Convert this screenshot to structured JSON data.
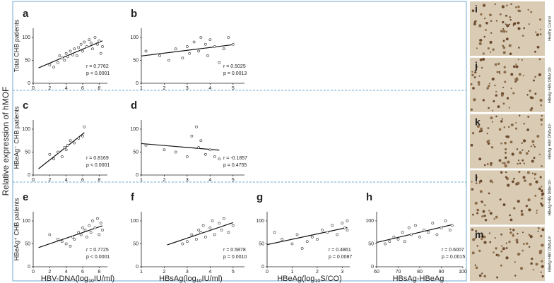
{
  "chart_data": [
    {
      "type": "scatter",
      "panel": "a",
      "xlim": [
        0,
        9
      ],
      "ylim": [
        0,
        120
      ],
      "xticks": [
        0,
        2,
        4,
        6,
        8
      ],
      "yticks": [
        0,
        50,
        100
      ],
      "x": [
        2,
        2.5,
        3,
        3.2,
        3.5,
        3.8,
        4,
        4.2,
        4.5,
        4.8,
        5,
        5.3,
        5.5,
        5.8,
        6,
        6.2,
        6.5,
        6.8,
        7,
        7.2,
        7.5,
        7.8,
        8,
        8.2,
        8.4
      ],
      "values": [
        40,
        35,
        45,
        60,
        55,
        50,
        65,
        58,
        70,
        62,
        75,
        60,
        78,
        85,
        70,
        90,
        80,
        95,
        88,
        75,
        100,
        85,
        92,
        65,
        80
      ],
      "annotations": [
        "r = 0.7762",
        "p < 0.0001"
      ]
    },
    {
      "type": "scatter",
      "panel": "b",
      "xlim": [
        1,
        5.5
      ],
      "ylim": [
        0,
        120
      ],
      "xticks": [
        1,
        2,
        3,
        4,
        5
      ],
      "yticks": [
        0,
        50,
        100
      ],
      "x": [
        1.2,
        1.8,
        2.2,
        2.5,
        2.8,
        3,
        3.1,
        3.3,
        3.5,
        3.6,
        3.8,
        3.9,
        4,
        4.2,
        4.4,
        4.6,
        4.8,
        5
      ],
      "values": [
        70,
        60,
        50,
        75,
        55,
        80,
        65,
        90,
        70,
        100,
        85,
        60,
        95,
        80,
        45,
        75,
        100,
        85
      ],
      "annotations": [
        "r = 0.5025",
        "p = 0.0013"
      ]
    },
    {
      "type": "scatter",
      "panel": "c",
      "xlim": [
        0,
        9
      ],
      "ylim": [
        0,
        120
      ],
      "xticks": [
        0,
        2,
        4,
        6,
        8
      ],
      "yticks": [
        0,
        50,
        100
      ],
      "x": [
        2,
        2.5,
        3,
        3.5,
        3.8,
        4,
        4.2,
        4.5,
        5,
        5.5,
        6,
        6.2
      ],
      "values": [
        45,
        35,
        50,
        40,
        60,
        55,
        65,
        75,
        70,
        80,
        85,
        105
      ],
      "annotations": [
        "r = 0.8169",
        "p < 0.0001"
      ]
    },
    {
      "type": "scatter",
      "panel": "d",
      "xlim": [
        1,
        5.5
      ],
      "ylim": [
        0,
        120
      ],
      "xticks": [
        1,
        2,
        3,
        4,
        5
      ],
      "yticks": [
        0,
        50,
        100
      ],
      "x": [
        1.2,
        2,
        2.5,
        3,
        3.2,
        3.4,
        3.5,
        3.6,
        3.8,
        4,
        4.2,
        4.4
      ],
      "values": [
        65,
        55,
        50,
        40,
        85,
        105,
        60,
        75,
        45,
        55,
        40,
        35
      ],
      "annotations": [
        "r = -0.1857",
        "p = 0.4755"
      ]
    },
    {
      "type": "scatter",
      "panel": "e",
      "xlim": [
        0,
        9
      ],
      "ylim": [
        0,
        120
      ],
      "xticks": [
        0,
        2,
        4,
        6,
        8
      ],
      "yticks": [
        0,
        50,
        100
      ],
      "x": [
        2,
        3,
        3.5,
        4,
        4.5,
        4.8,
        5,
        5.5,
        5.8,
        6,
        6.3,
        6.5,
        6.8,
        7,
        7.2,
        7.5,
        7.8,
        8,
        8.2,
        8.4
      ],
      "values": [
        70,
        60,
        55,
        50,
        45,
        65,
        60,
        75,
        70,
        85,
        80,
        65,
        90,
        75,
        100,
        85,
        105,
        70,
        95,
        80
      ],
      "annotations": [
        "r = 0.7725",
        "p < 0.0001"
      ]
    },
    {
      "type": "scatter",
      "panel": "f",
      "xlim": [
        1,
        5.5
      ],
      "ylim": [
        0,
        120
      ],
      "xticks": [
        1,
        2,
        3,
        4,
        5
      ],
      "yticks": [
        0,
        50,
        100
      ],
      "x": [
        2.8,
        3,
        3.2,
        3.4,
        3.5,
        3.6,
        3.7,
        3.8,
        4,
        4.1,
        4.2,
        4.4,
        4.5,
        4.6,
        4.8,
        5
      ],
      "values": [
        50,
        55,
        70,
        60,
        80,
        75,
        90,
        65,
        85,
        100,
        70,
        95,
        80,
        105,
        75,
        90
      ],
      "annotations": [
        "r = 0.5878",
        "p = 0.0010"
      ]
    },
    {
      "type": "scatter",
      "panel": "g",
      "xlim": [
        0,
        3.3
      ],
      "ylim": [
        0,
        120
      ],
      "xticks": [
        0,
        1,
        2,
        3
      ],
      "yticks": [
        0,
        50,
        100
      ],
      "x": [
        0.3,
        0.6,
        1,
        1.2,
        1.4,
        1.6,
        1.8,
        2,
        2.2,
        2.4,
        2.6,
        2.8,
        3,
        3.1,
        3.2,
        3.2
      ],
      "values": [
        75,
        60,
        50,
        70,
        40,
        55,
        65,
        60,
        80,
        75,
        90,
        70,
        95,
        85,
        100,
        80
      ],
      "annotations": [
        "r = 0.4861",
        "p = 0.0087"
      ]
    },
    {
      "type": "scatter",
      "panel": "h",
      "xlim": [
        60,
        100
      ],
      "ylim": [
        0,
        120
      ],
      "xticks": [
        60,
        70,
        80,
        90,
        100
      ],
      "yticks": [
        0,
        50,
        100
      ],
      "x": [
        64,
        66,
        68,
        70,
        72,
        73,
        75,
        76,
        78,
        80,
        82,
        84,
        86,
        88,
        90,
        92,
        94,
        95
      ],
      "values": [
        50,
        55,
        65,
        60,
        75,
        55,
        85,
        70,
        90,
        65,
        80,
        75,
        95,
        70,
        85,
        100,
        80,
        90
      ],
      "annotations": [
        "r = 0.6007",
        "p = 0.0015"
      ]
    }
  ],
  "figure": {
    "y_label": "Relative expression of hMOF",
    "row_labels": [
      "Total CHB patients",
      "HBeAg⁻ CHB patients",
      "HBeAg⁺ CHB patients"
    ],
    "x_labels": [
      [
        "HBV-DNA(log",
        "10",
        "IU/ml)"
      ],
      [
        "HBsAg(log",
        "10",
        "IU/ml)"
      ],
      [
        "HBeAg(log",
        "10",
        "S/CO)"
      ],
      [
        "HBsAg-HBeAg"
      ]
    ],
    "images": [
      {
        "letter": "i",
        "caption": "Healthy Control"
      },
      {
        "letter": "j",
        "caption": "HBeAg⁻HBV DNA<10⁵"
      },
      {
        "letter": "k",
        "caption": "HBeAg⁻HBV DNA≥10⁵"
      },
      {
        "letter": "l",
        "caption": "HBeAg⁺HBV DNA<10⁵"
      },
      {
        "letter": "m",
        "caption": "HBeAg⁺HBV DNA≥10⁵"
      }
    ]
  }
}
